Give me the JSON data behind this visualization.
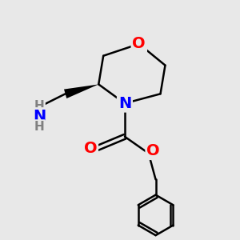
{
  "bg_color": "#e8e8e8",
  "bond_color": "#000000",
  "bond_width": 1.8,
  "atom_colors": {
    "O": "#ff0000",
    "N": "#0000ff",
    "C": "#000000",
    "H": "#808080"
  },
  "font_size_atom": 13,
  "font_size_h": 10
}
